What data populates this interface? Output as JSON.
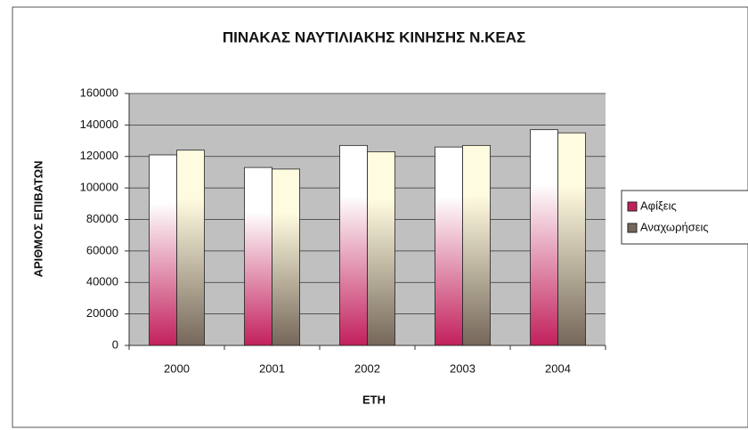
{
  "chart_data": {
    "type": "bar",
    "title": "ΠΙΝΑΚΑΣ ΝΑΥΤΙΛΙΑΚΗΣ ΚΙΝΗΣΗΣ Ν.ΚΕΑΣ",
    "x_label": "ΕΤΗ",
    "y_label": "ΑΡΙΘΜΟΣ ΕΠΙΒΑΤΩΝ",
    "categories": [
      "2000",
      "2001",
      "2002",
      "2003",
      "2004"
    ],
    "series": [
      {
        "name": "Αφίξεις",
        "color": "#c2205c",
        "values": [
          121000,
          113000,
          127000,
          126000,
          137000
        ]
      },
      {
        "name": "Αναχωρήσεις",
        "color": "#75675a",
        "values": [
          124000,
          112000,
          123000,
          127000,
          135000
        ]
      }
    ],
    "ylim": [
      0,
      160000
    ],
    "yticks": [
      0,
      20000,
      40000,
      60000,
      80000,
      100000,
      120000,
      140000,
      160000
    ],
    "grid": true,
    "legend": "right"
  }
}
